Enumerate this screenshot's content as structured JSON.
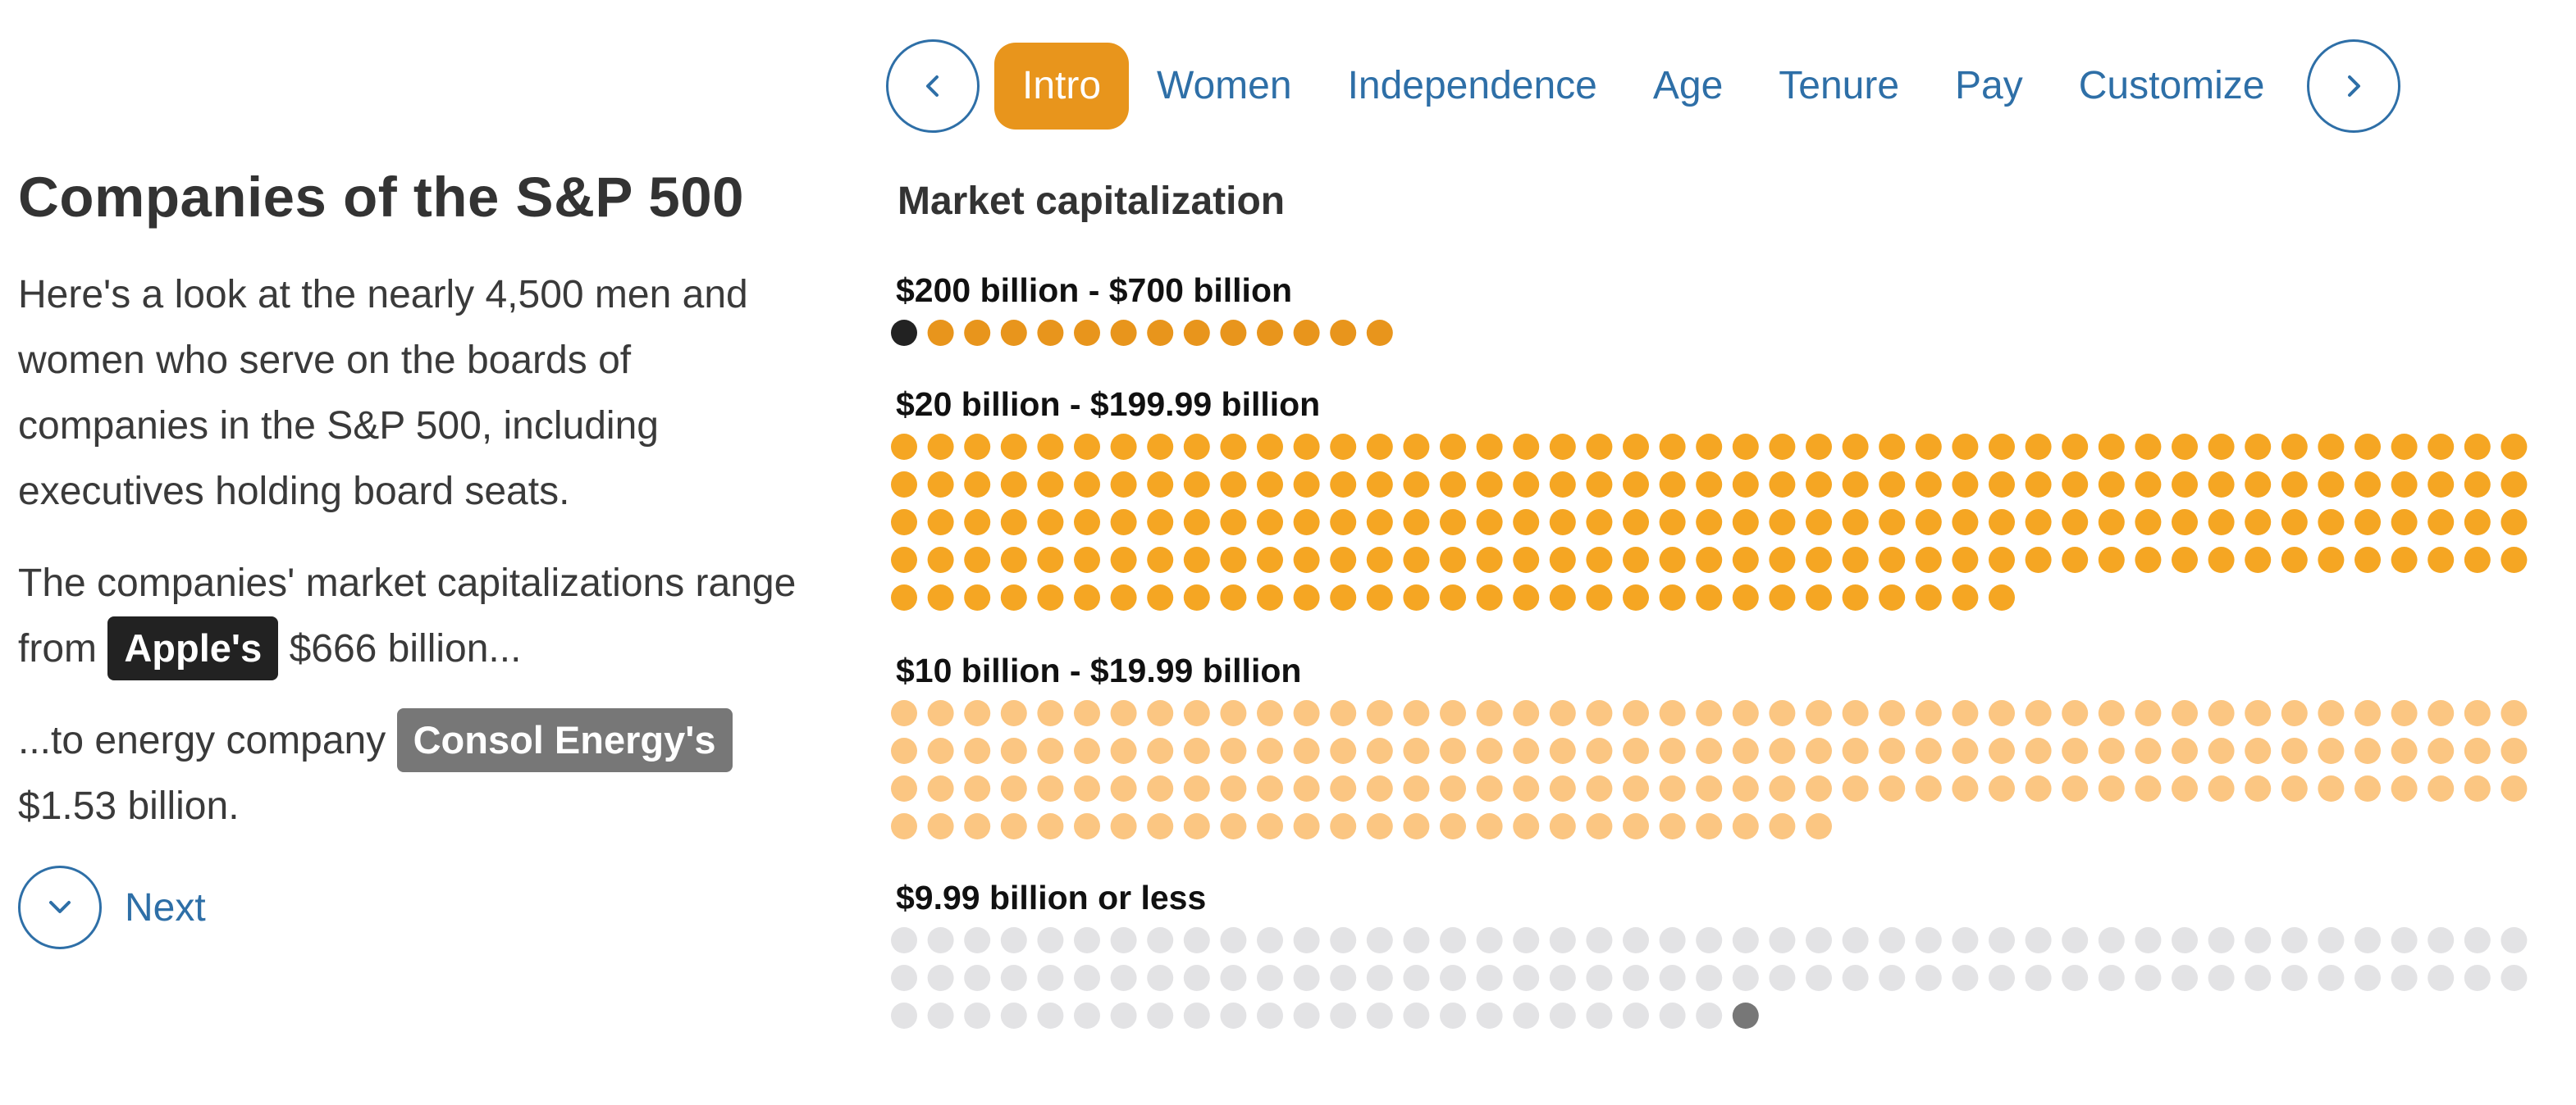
{
  "nav": {
    "prev_icon": "chevron-left-icon",
    "next_icon": "chevron-right-icon",
    "tabs": [
      {
        "label": "Intro",
        "active": true
      },
      {
        "label": "Women",
        "active": false
      },
      {
        "label": "Independence",
        "active": false
      },
      {
        "label": "Age",
        "active": false
      },
      {
        "label": "Tenure",
        "active": false
      },
      {
        "label": "Pay",
        "active": false
      },
      {
        "label": "Customize",
        "active": false
      }
    ]
  },
  "narrative": {
    "title": "Companies of the S&P 500",
    "intro": "Here's a look at the nearly 4,500 men and women who serve on the boards of companies in the S&P 500, including executives holding board seats.",
    "range_prefix": "The companies' market capitalizations range from",
    "top_company": "Apple's",
    "top_value": "$666 billion...",
    "low_prefix": "...to energy company",
    "low_company": "Consol Energy's",
    "low_value": "$1.53 billion.",
    "next_label": "Next",
    "next_icon": "chevron-down-icon"
  },
  "colors": {
    "accent": "#e8951c",
    "link": "#2e6fa7",
    "tier_top": "#e8951c",
    "tier_large": "#f5a623",
    "tier_mid": "#fbc682",
    "tier_small": "#e3e3e5",
    "highlight_top": "#222222",
    "highlight_low": "#777777",
    "apple_tag": "#222222",
    "consol_tag": "#777777"
  },
  "chart_data": {
    "type": "dot-matrix",
    "title": "Market capitalization",
    "unit": "companies (one dot per company)",
    "groups": [
      {
        "label": "$200 billion - $700 billion",
        "count": 14,
        "highlight": "first",
        "highlight_label": "Apple"
      },
      {
        "label": "$20 billion - $199.99 billion",
        "count": 211
      },
      {
        "label": "$10 billion - $19.99 billion",
        "count": 161
      },
      {
        "label": "$9.99 billion or less",
        "count": 114,
        "highlight": "last",
        "highlight_label": "Consol Energy"
      }
    ]
  }
}
